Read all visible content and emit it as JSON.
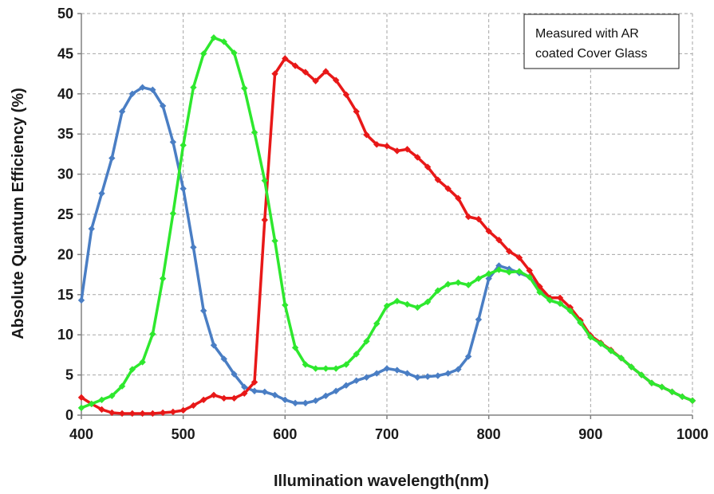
{
  "chart_data": {
    "type": "line",
    "xlabel": "Illumination wavelength(nm)",
    "ylabel": "Absolute Quantum Efficiency (%)",
    "xlim": [
      400,
      1000
    ],
    "ylim": [
      0,
      50
    ],
    "x_ticks": [
      400,
      500,
      600,
      700,
      800,
      900,
      1000
    ],
    "y_ticks": [
      0,
      5,
      10,
      15,
      20,
      25,
      30,
      35,
      40,
      45,
      50
    ],
    "grid": true,
    "annotation": [
      "Measured with AR",
      "coated Cover Glass"
    ],
    "series": [
      {
        "color": "#4a7ec4",
        "x": [
          400,
          410,
          420,
          430,
          440,
          450,
          460,
          470,
          480,
          490,
          500,
          510,
          520,
          530,
          540,
          550,
          560,
          570,
          580,
          590,
          600,
          610,
          620,
          630,
          640,
          650,
          660,
          670,
          680,
          690,
          700,
          710,
          720,
          730,
          740,
          750,
          760,
          770,
          780,
          790,
          800,
          810,
          820,
          830,
          840,
          850,
          860,
          870,
          880,
          890,
          900,
          910,
          920,
          930,
          940,
          950,
          960,
          970,
          980,
          990,
          1000
        ],
        "y": [
          14.3,
          23.2,
          27.6,
          32.0,
          37.8,
          40.0,
          40.8,
          40.5,
          38.5,
          34.0,
          28.2,
          20.9,
          13.0,
          8.7,
          7.0,
          5.1,
          3.5,
          3.0,
          2.9,
          2.5,
          1.9,
          1.5,
          1.5,
          1.8,
          2.4,
          3.0,
          3.7,
          4.3,
          4.7,
          5.2,
          5.8,
          5.6,
          5.2,
          4.7,
          4.8,
          4.9,
          5.2,
          5.7,
          7.3,
          11.9,
          17.0,
          18.6,
          18.2,
          17.7,
          17.2,
          15.7,
          14.3,
          13.9,
          13.0,
          11.6,
          9.9,
          8.9,
          8.0,
          7.1,
          6.0,
          5.0,
          4.0,
          3.5,
          2.9,
          2.3,
          1.8
        ]
      },
      {
        "color": "#e81818",
        "x": [
          400,
          410,
          420,
          430,
          440,
          450,
          460,
          470,
          480,
          490,
          500,
          510,
          520,
          530,
          540,
          550,
          560,
          570,
          580,
          590,
          600,
          610,
          620,
          630,
          640,
          650,
          660,
          670,
          680,
          690,
          700,
          710,
          720,
          730,
          740,
          750,
          760,
          770,
          780,
          790,
          800,
          810,
          820,
          830,
          840,
          850,
          860,
          870,
          880,
          890,
          900,
          910,
          920,
          930,
          940,
          950,
          960,
          970,
          980,
          990,
          1000
        ],
        "y": [
          2.2,
          1.4,
          0.7,
          0.3,
          0.2,
          0.2,
          0.2,
          0.2,
          0.3,
          0.4,
          0.6,
          1.2,
          1.9,
          2.5,
          2.1,
          2.1,
          2.7,
          4.1,
          24.3,
          42.5,
          44.4,
          43.5,
          42.7,
          41.6,
          42.8,
          41.7,
          39.9,
          37.8,
          34.9,
          33.7,
          33.5,
          32.9,
          33.1,
          32.1,
          30.9,
          29.3,
          28.2,
          27.0,
          24.7,
          24.4,
          22.9,
          21.8,
          20.4,
          19.6,
          18.0,
          16.0,
          14.6,
          14.6,
          13.4,
          11.8,
          9.9,
          9.0,
          8.1,
          7.1,
          6.0,
          5.0,
          4.0,
          3.5,
          2.9,
          2.3,
          1.8
        ]
      },
      {
        "color": "#2ee82e",
        "x": [
          400,
          410,
          420,
          430,
          440,
          450,
          460,
          470,
          480,
          490,
          500,
          510,
          520,
          530,
          540,
          550,
          560,
          570,
          580,
          590,
          600,
          610,
          620,
          630,
          640,
          650,
          660,
          670,
          680,
          690,
          700,
          710,
          720,
          730,
          740,
          750,
          760,
          770,
          780,
          790,
          800,
          810,
          820,
          830,
          840,
          850,
          860,
          870,
          880,
          890,
          900,
          910,
          920,
          930,
          940,
          950,
          960,
          970,
          980,
          990,
          1000
        ],
        "y": [
          0.9,
          1.4,
          1.9,
          2.4,
          3.6,
          5.7,
          6.6,
          10.1,
          17.0,
          25.1,
          33.6,
          40.8,
          45.0,
          47.0,
          46.5,
          45.1,
          40.7,
          35.2,
          29.2,
          21.7,
          13.7,
          8.4,
          6.3,
          5.8,
          5.8,
          5.8,
          6.3,
          7.6,
          9.2,
          11.4,
          13.6,
          14.2,
          13.8,
          13.4,
          14.1,
          15.5,
          16.3,
          16.5,
          16.2,
          17.0,
          17.6,
          18.1,
          17.8,
          17.9,
          17.2,
          15.3,
          14.3,
          13.9,
          13.0,
          11.5,
          9.7,
          8.9,
          8.0,
          7.1,
          6.0,
          5.0,
          4.0,
          3.5,
          2.9,
          2.3,
          1.8
        ]
      }
    ]
  }
}
